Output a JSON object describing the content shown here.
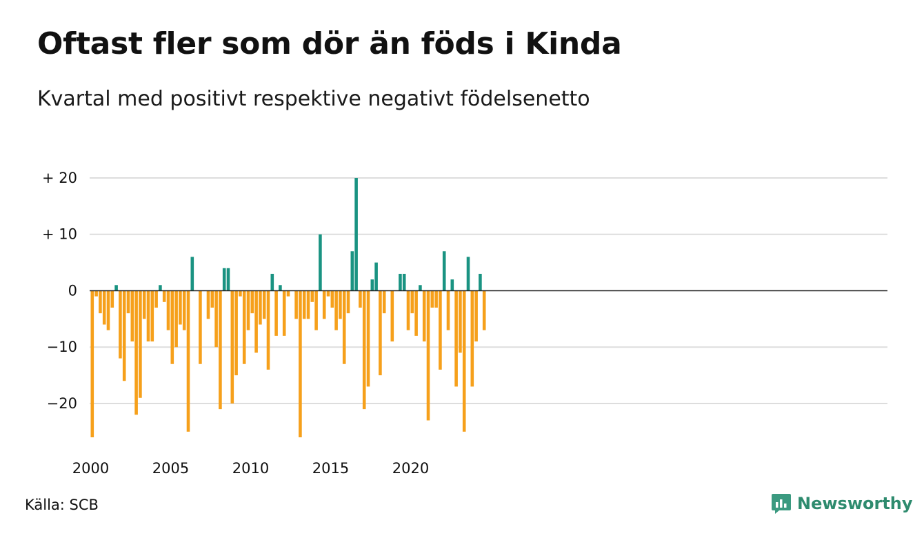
{
  "title": "Oftast fler som dör än föds i Kinda",
  "subtitle": "Kvartal med positivt respektive negativt födelsenetto",
  "source": "Källa: SCB",
  "brand": "Newsworthy",
  "colors": {
    "positive": "#1a9382",
    "negative": "#f6a01b",
    "grid": "#dddddd",
    "brand": "#2e8b6e"
  },
  "chart_data": {
    "type": "bar",
    "title": "Oftast fler som dör än föds i Kinda",
    "subtitle": "Kvartal med positivt respektive negativt födelsenetto",
    "x_start": 2000,
    "x_step": 0.25,
    "values": [
      -26,
      -1,
      -4,
      -6,
      -7,
      -3,
      1,
      -12,
      -16,
      -4,
      -9,
      -22,
      -19,
      -5,
      -9,
      -9,
      -3,
      1,
      -2,
      -7,
      -13,
      -10,
      -6,
      -7,
      -25,
      6,
      0,
      -13,
      0,
      -5,
      -3,
      -10,
      -21,
      4,
      4,
      -20,
      -15,
      -1,
      -13,
      -7,
      -4,
      -11,
      -6,
      -5,
      -14,
      3,
      -8,
      1,
      -8,
      -1,
      0,
      -5,
      -26,
      -5,
      -5,
      -2,
      -7,
      10,
      -5,
      -1,
      -3,
      -7,
      -5,
      -13,
      -4,
      7,
      20,
      -3,
      -21,
      -17,
      2,
      5,
      -15,
      -4,
      0,
      -9,
      0,
      3,
      3,
      -7,
      -4,
      -8,
      1,
      -9,
      -23,
      -3,
      -3,
      -14,
      7,
      -7,
      2,
      -17,
      -11,
      -25,
      6,
      -17,
      -9,
      3,
      -7
    ],
    "ylim": [
      -26,
      20
    ],
    "y_ticks": [
      20,
      10,
      0,
      -10,
      -20
    ],
    "y_tick_labels": [
      "+ 20",
      "+ 10",
      "0",
      "−10",
      "−20"
    ],
    "x_ticks": [
      2000,
      2005,
      2010,
      2015,
      2020
    ],
    "x_tick_labels": [
      "2000",
      "2005",
      "2010",
      "2015",
      "2020"
    ],
    "grid": true,
    "legend": "none"
  }
}
